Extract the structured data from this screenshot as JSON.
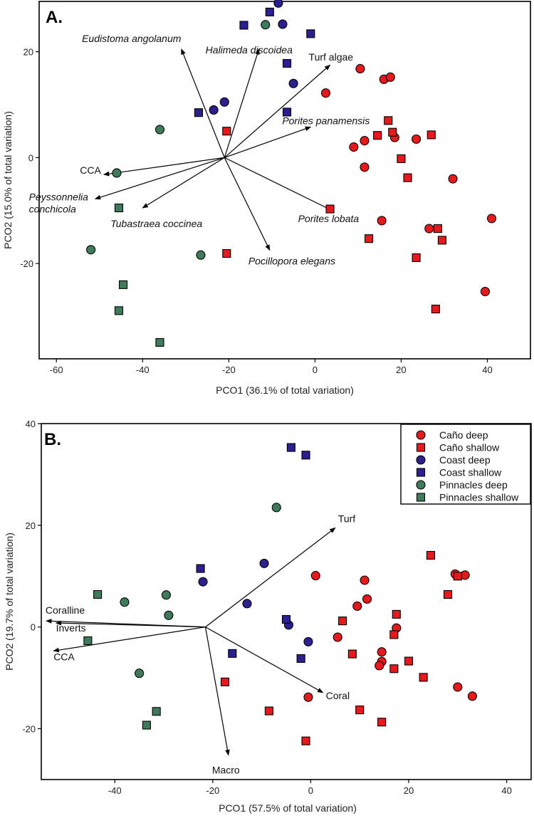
{
  "chart_data": [
    {
      "type": "scatter",
      "panel_label": "A.",
      "xlabel": "PCO1 (36.1% of total variation)",
      "ylabel": "PCO2 (15.0% of total variation)",
      "xlim": [
        -64,
        50
      ],
      "ylim": [
        -38,
        29.5
      ],
      "xticks": [
        -60,
        -40,
        -20,
        0,
        20,
        40
      ],
      "yticks": [
        -20,
        0,
        20
      ],
      "vector_origin": [
        -21,
        0
      ],
      "vectors": [
        {
          "label": "Eudistoma angolanum",
          "italic": true,
          "x": -31,
          "y": 20.5
        },
        {
          "label": "Halimeda discoidea",
          "italic": true,
          "x": -13,
          "y": 20.5
        },
        {
          "label": "Turf algae",
          "italic": false,
          "x": 3.5,
          "y": 17.5
        },
        {
          "label": "Porites panamensis",
          "italic": true,
          "x": -1,
          "y": 5.8
        },
        {
          "label": "CCA",
          "italic": false,
          "x": -49,
          "y": -3.2
        },
        {
          "label": "Peyssonnelia conchicola",
          "italic": true,
          "lines": [
            "Peyssonnelia",
            "conchicola"
          ],
          "x": -51,
          "y": -7.8
        },
        {
          "label": "Tubastraea coccinea",
          "italic": true,
          "x": -40,
          "y": -9.5
        },
        {
          "label": "Porites lobata",
          "italic": true,
          "x": 4,
          "y": -10
        },
        {
          "label": "Pocillopora elegans",
          "italic": true,
          "x": -10.5,
          "y": -17.5
        }
      ],
      "series": [
        {
          "name": "Caño deep",
          "color": "#e8191d",
          "marker": "circle",
          "points": [
            [
              10.5,
              16.8
            ],
            [
              16,
              14.8
            ],
            [
              17.5,
              15.2
            ],
            [
              2.5,
              12.2
            ],
            [
              9,
              2
            ],
            [
              11.5,
              3.2
            ],
            [
              18.5,
              3.8
            ],
            [
              23.5,
              3.5
            ],
            [
              11.5,
              -1.8
            ],
            [
              32,
              -4
            ],
            [
              15.5,
              -11.9
            ],
            [
              26.5,
              -13.4
            ],
            [
              41,
              -11.5
            ],
            [
              39.5,
              -25.3
            ]
          ]
        },
        {
          "name": "Caño shallow",
          "color": "#e8191d",
          "marker": "square",
          "points": [
            [
              -20.5,
              5
            ],
            [
              17,
              7
            ],
            [
              14.5,
              4.2
            ],
            [
              18,
              4.8
            ],
            [
              27,
              4.3
            ],
            [
              20,
              -0.2
            ],
            [
              21.5,
              -3.8
            ],
            [
              3.5,
              -9.7
            ],
            [
              12.5,
              -15.3
            ],
            [
              28.5,
              -13.4
            ],
            [
              29.5,
              -15.6
            ],
            [
              23.5,
              -18.9
            ],
            [
              -20.5,
              -18.1
            ],
            [
              28,
              -28.6
            ]
          ]
        },
        {
          "name": "Coast deep",
          "color": "#2c1f8f",
          "marker": "circle",
          "points": [
            [
              -8.5,
              29.2
            ],
            [
              -7.5,
              25.2
            ],
            [
              -5,
              14
            ],
            [
              -21,
              10.5
            ],
            [
              -23.5,
              9
            ]
          ]
        },
        {
          "name": "Coast shallow",
          "color": "#2c1f8f",
          "marker": "square",
          "points": [
            [
              -10.5,
              27.5
            ],
            [
              -16.5,
              25
            ],
            [
              -1,
              23.4
            ],
            [
              -6.5,
              17.8
            ],
            [
              -6.5,
              8.6
            ],
            [
              -27,
              8.5
            ]
          ]
        },
        {
          "name": "Pinnacles deep",
          "color": "#3f7b5a",
          "marker": "circle",
          "points": [
            [
              -11.5,
              25.1
            ],
            [
              -36,
              5.3
            ],
            [
              -46,
              -2.9
            ],
            [
              -52,
              -17.4
            ],
            [
              -26.5,
              -18.4
            ]
          ]
        },
        {
          "name": "Pinnacles shallow",
          "color": "#3f7b5a",
          "marker": "square",
          "points": [
            [
              -45.5,
              -9.5
            ],
            [
              -44.5,
              -24
            ],
            [
              -45.5,
              -28.9
            ],
            [
              -36,
              -34.9
            ]
          ]
        }
      ]
    },
    {
      "type": "scatter",
      "panel_label": "B.",
      "xlabel": "PCO1 (57.5% of total variation)",
      "ylabel": "PCO2 (19.7% of total variation)",
      "xlim": [
        -55,
        45
      ],
      "ylim": [
        -30,
        40
      ],
      "xticks": [
        -40,
        -20,
        0,
        20,
        40
      ],
      "yticks": [
        -20,
        0,
        20,
        40
      ],
      "vector_origin": [
        -21.5,
        0
      ],
      "vectors": [
        {
          "label": "Turf",
          "italic": false,
          "x": 5,
          "y": 19.5
        },
        {
          "label": "Coralline",
          "italic": false,
          "x": -54,
          "y": 1.2
        },
        {
          "label": "Inverts",
          "italic": false,
          "x": -52,
          "y": 0.8
        },
        {
          "label": "CCA",
          "italic": false,
          "x": -52.5,
          "y": -4.7
        },
        {
          "label": "Coral",
          "italic": false,
          "x": 2.5,
          "y": -12.9
        },
        {
          "label": "Macro",
          "italic": false,
          "x": -16.8,
          "y": -25.2
        }
      ],
      "legend": {
        "position": "top-right",
        "entries": [
          "Caño deep",
          "Caño shallow",
          "Coast deep",
          "Coast shallow",
          "Pinnacles deep",
          "Pinnacles shallow"
        ]
      },
      "series": [
        {
          "name": "Caño deep",
          "color": "#e8191d",
          "marker": "circle",
          "points": [
            [
              1,
              10.1
            ],
            [
              11,
              9.2
            ],
            [
              11.5,
              5.5
            ],
            [
              9.5,
              4.1
            ],
            [
              5.5,
              -2
            ],
            [
              17.5,
              -0.2
            ],
            [
              14.5,
              -4.9
            ],
            [
              14.5,
              -6.8
            ],
            [
              14,
              -7.6
            ],
            [
              29.5,
              10.4
            ],
            [
              31.5,
              10.2
            ],
            [
              30,
              -11.8
            ],
            [
              33,
              -13.6
            ],
            [
              -0.5,
              -13.8
            ]
          ]
        },
        {
          "name": "Caño shallow",
          "color": "#e8191d",
          "marker": "square",
          "points": [
            [
              24.5,
              14.1
            ],
            [
              30,
              10
            ],
            [
              28,
              6.4
            ],
            [
              17.5,
              2.5
            ],
            [
              6.5,
              1.2
            ],
            [
              17,
              -1.5
            ],
            [
              8.5,
              -5.3
            ],
            [
              20,
              -6.7
            ],
            [
              17,
              -8.2
            ],
            [
              23,
              -9.9
            ],
            [
              -17.5,
              -10.8
            ],
            [
              10,
              -16.3
            ],
            [
              14.5,
              -18.7
            ],
            [
              -8.5,
              -16.5
            ],
            [
              -1,
              -22.4
            ]
          ]
        },
        {
          "name": "Coast deep",
          "color": "#2c1f8f",
          "marker": "circle",
          "points": [
            [
              -9.5,
              12.5
            ],
            [
              -22,
              8.9
            ],
            [
              -13,
              4.6
            ],
            [
              -4.5,
              0.4
            ],
            [
              -0.5,
              -2.9
            ]
          ]
        },
        {
          "name": "Coast shallow",
          "color": "#2c1f8f",
          "marker": "square",
          "points": [
            [
              -4,
              35.3
            ],
            [
              -1,
              33.8
            ],
            [
              -22.5,
              11.5
            ],
            [
              -5,
              1.5
            ],
            [
              -16,
              -5.2
            ],
            [
              -2,
              -6.2
            ]
          ]
        },
        {
          "name": "Pinnacles deep",
          "color": "#3f7b5a",
          "marker": "circle",
          "points": [
            [
              -7,
              23.5
            ],
            [
              -29.5,
              6.3
            ],
            [
              -38,
              4.9
            ],
            [
              -29,
              2.3
            ],
            [
              -35,
              -9.1
            ]
          ]
        },
        {
          "name": "Pinnacles shallow",
          "color": "#3f7b5a",
          "marker": "square",
          "points": [
            [
              -43.5,
              6.4
            ],
            [
              -45.5,
              -2.7
            ],
            [
              -31.5,
              -16.6
            ],
            [
              -33.5,
              -19.3
            ]
          ]
        }
      ]
    }
  ]
}
